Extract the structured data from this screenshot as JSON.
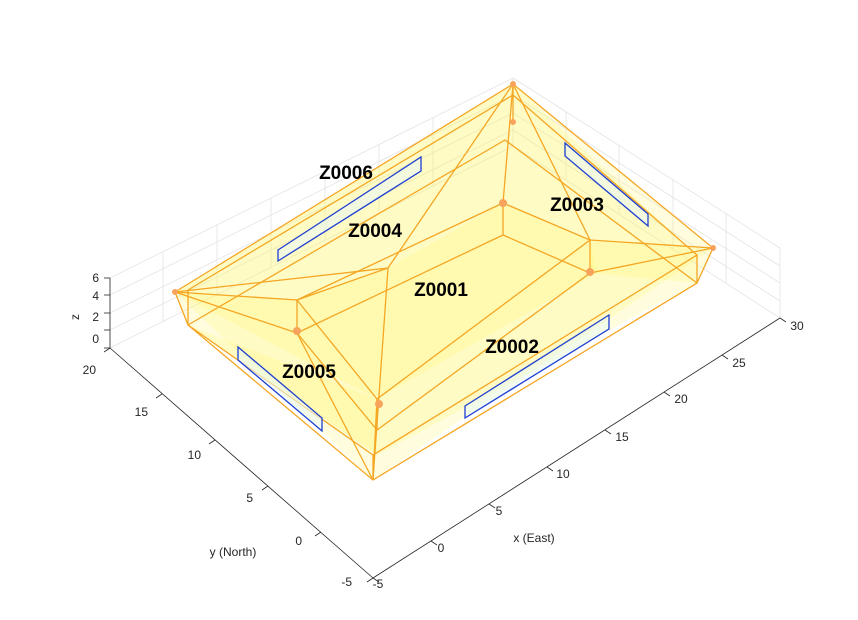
{
  "figure": {
    "axes": {
      "x": {
        "label": "x (East)",
        "ticks": [
          "-5",
          "0",
          "5",
          "10",
          "15",
          "20",
          "25",
          "30"
        ]
      },
      "y": {
        "label": "y (North)",
        "ticks": [
          "-5",
          "0",
          "5",
          "10",
          "15",
          "20"
        ]
      },
      "z": {
        "label": "z",
        "ticks": [
          "0",
          "2",
          "4",
          "6"
        ]
      }
    },
    "zones": [
      "Z0001",
      "Z0002",
      "Z0003",
      "Z0004",
      "Z0005",
      "Z0006"
    ],
    "colors": {
      "zone_face": "#fff46a",
      "zone_edge": "#f5a623",
      "window_edge": "#1f3fd1",
      "window_fill": "#e9f8f2",
      "grid": "#e3e3e3",
      "axis": "#262626"
    },
    "grid": true
  }
}
